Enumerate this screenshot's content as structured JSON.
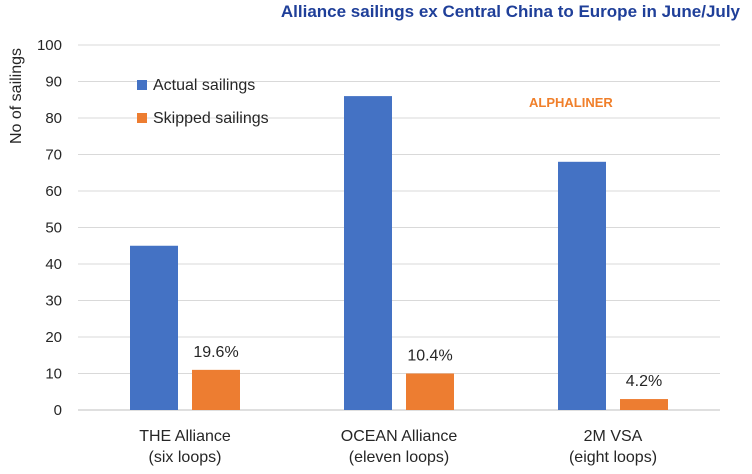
{
  "chart_data": {
    "type": "bar",
    "title": "Alliance sailings ex Central China to Europe in June/July",
    "ylabel": "No of sailings",
    "ylim": [
      0,
      100
    ],
    "yticks": [
      0,
      10,
      20,
      30,
      40,
      50,
      60,
      70,
      80,
      90,
      100
    ],
    "grid": true,
    "legend_position": "top-left",
    "categories": [
      [
        "THE Alliance",
        "(six loops)"
      ],
      [
        "OCEAN Alliance",
        "(eleven loops)"
      ],
      [
        "2M VSA",
        "(eight loops)"
      ]
    ],
    "series": [
      {
        "name": "Actual sailings",
        "color": "#4472c4",
        "values": [
          45,
          86,
          68
        ],
        "labels": [
          "",
          "",
          ""
        ]
      },
      {
        "name": "Skipped sailings",
        "color": "#ed7d31",
        "values": [
          11,
          10,
          3
        ],
        "labels": [
          "19.6%",
          "10.4%",
          "4.2%"
        ]
      }
    ],
    "watermark": "ALPHALINER"
  }
}
